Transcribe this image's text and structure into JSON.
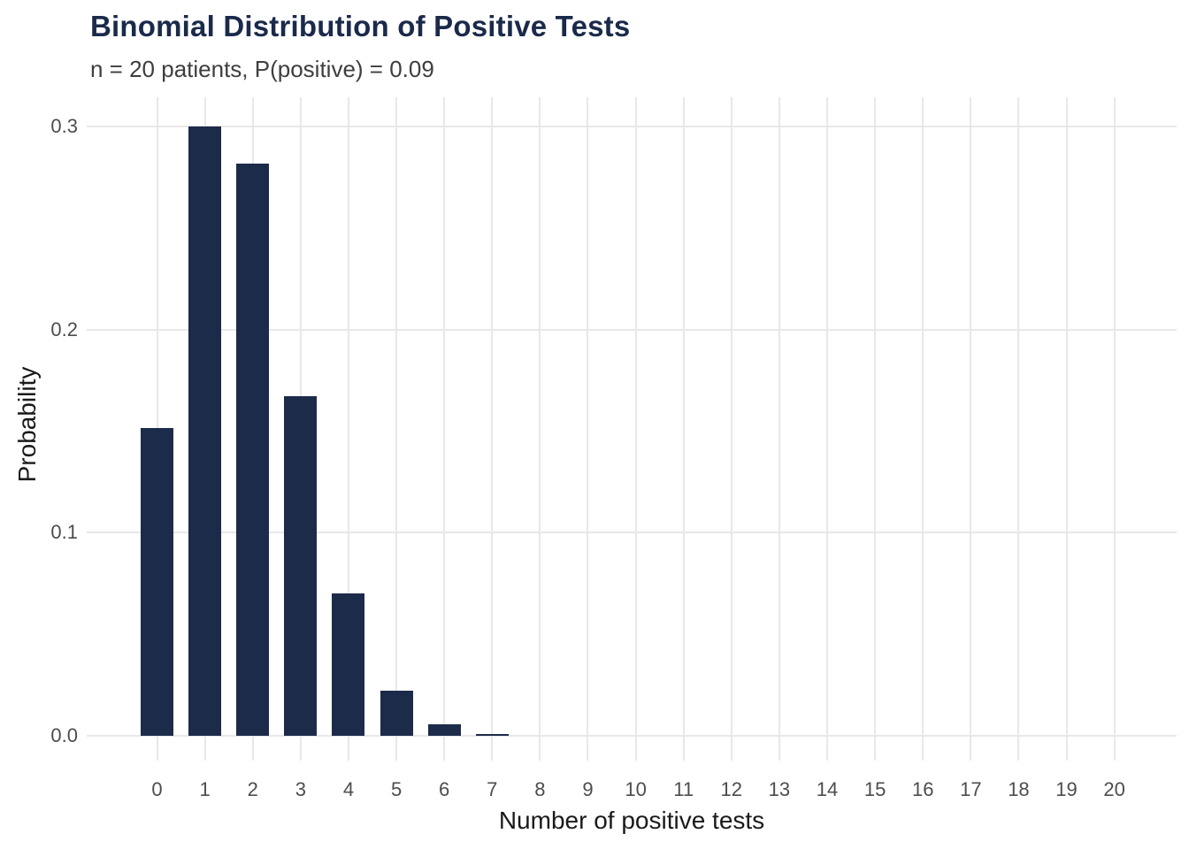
{
  "chart_data": {
    "type": "bar",
    "title": "Binomial Distribution of Positive Tests",
    "subtitle": "n = 20 patients, P(positive) = 0.09",
    "xlabel": "Number of positive tests",
    "ylabel": "Probability",
    "categories": [
      0,
      1,
      2,
      3,
      4,
      5,
      6,
      7,
      8,
      9,
      10,
      11,
      12,
      13,
      14,
      15,
      16,
      17,
      18,
      19,
      20
    ],
    "values": [
      0.151646,
      0.299961,
      0.281832,
      0.167243,
      0.070297,
      0.022248,
      0.005501,
      0.001088,
      0.000175,
      2.3e-05,
      3e-06,
      0,
      0,
      0,
      0,
      0,
      0,
      0,
      0,
      0,
      0
    ],
    "yticks": [
      0,
      0.1,
      0.2,
      0.3
    ],
    "ytick_labels": [
      "0.0",
      "0.1",
      "0.2",
      "0.3"
    ],
    "ylim": [
      0,
      0.3144
    ],
    "xlim": [
      -1.47,
      21.3
    ],
    "grid": "major-only, horizontal at 0.1 steps and vertical at each integer, light gray on white",
    "legend": "none",
    "colors": {
      "bar": "#1d2b4a",
      "grid": "#e8e8e8",
      "title": "#1b2a4a",
      "subtitle": "#3e3e3e",
      "tick_labels": "#4d4d4d",
      "axis_titles": "#1a1a1a",
      "background": "#ffffff"
    }
  }
}
